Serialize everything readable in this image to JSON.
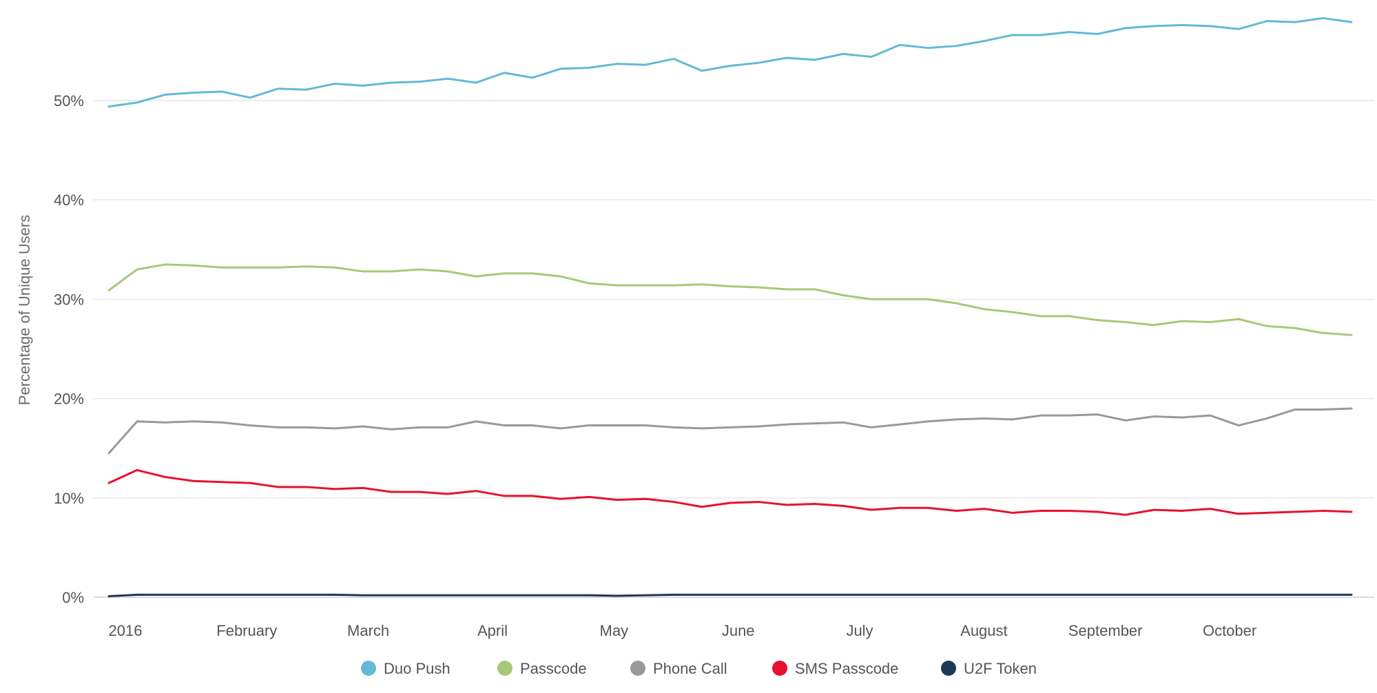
{
  "chart_data": {
    "type": "line",
    "title": "",
    "xlabel": "",
    "ylabel": "Percentage of Unique Users",
    "ylim": [
      0,
      60
    ],
    "yticks": [
      "0%",
      "10%",
      "20%",
      "30%",
      "40%",
      "50%"
    ],
    "yticks_values": [
      0,
      10,
      20,
      30,
      40,
      50
    ],
    "grid": true,
    "legend": "bottom",
    "x_range": [
      0,
      45
    ],
    "xticks": [
      {
        "label": "2016",
        "x": 1
      },
      {
        "label": "February",
        "x": 5.3
      },
      {
        "label": "March",
        "x": 9.6
      },
      {
        "label": "April",
        "x": 14
      },
      {
        "label": "May",
        "x": 18.3
      },
      {
        "label": "June",
        "x": 22.7
      },
      {
        "label": "July",
        "x": 27
      },
      {
        "label": "August",
        "x": 31.4
      },
      {
        "label": "September",
        "x": 35.7
      },
      {
        "label": "October",
        "x": 40.1
      }
    ],
    "series": [
      {
        "name": "Duo Push",
        "color": "#64b9d6",
        "values": [
          49.4,
          49.8,
          50.6,
          50.8,
          50.9,
          50.3,
          51.2,
          51.1,
          51.7,
          51.5,
          51.8,
          51.9,
          52.2,
          51.8,
          52.8,
          52.3,
          53.2,
          53.3,
          53.7,
          53.6,
          54.2,
          53.0,
          53.5,
          53.8,
          54.3,
          54.1,
          54.7,
          54.4,
          55.6,
          55.3,
          55.5,
          56.0,
          56.6,
          56.6,
          56.9,
          56.7,
          57.3,
          57.5,
          57.6,
          57.5,
          57.2,
          58.0,
          57.9,
          58.3,
          57.9
        ]
      },
      {
        "name": "Passcode",
        "color": "#a6c978",
        "values": [
          30.9,
          33.0,
          33.5,
          33.4,
          33.2,
          33.2,
          33.2,
          33.3,
          33.2,
          32.8,
          32.8,
          33.0,
          32.8,
          32.3,
          32.6,
          32.6,
          32.3,
          31.6,
          31.4,
          31.4,
          31.4,
          31.5,
          31.3,
          31.2,
          31.0,
          31.0,
          30.4,
          30.0,
          30.0,
          30.0,
          29.6,
          29.0,
          28.7,
          28.3,
          28.3,
          27.9,
          27.7,
          27.4,
          27.8,
          27.7,
          28.0,
          27.3,
          27.1,
          26.6,
          26.4
        ]
      },
      {
        "name": "Phone Call",
        "color": "#999999",
        "values": [
          14.5,
          17.7,
          17.6,
          17.7,
          17.6,
          17.3,
          17.1,
          17.1,
          17.0,
          17.2,
          16.9,
          17.1,
          17.1,
          17.7,
          17.3,
          17.3,
          17.0,
          17.3,
          17.3,
          17.3,
          17.1,
          17.0,
          17.1,
          17.2,
          17.4,
          17.5,
          17.6,
          17.1,
          17.4,
          17.7,
          17.9,
          18.0,
          17.9,
          18.3,
          18.3,
          18.4,
          17.8,
          18.2,
          18.1,
          18.3,
          17.3,
          18.0,
          18.9,
          18.9,
          19.0
        ]
      },
      {
        "name": "SMS Passcode",
        "color": "#e8112d",
        "values": [
          11.5,
          12.8,
          12.1,
          11.7,
          11.6,
          11.5,
          11.1,
          11.1,
          10.9,
          11.0,
          10.6,
          10.6,
          10.4,
          10.7,
          10.2,
          10.2,
          9.9,
          10.1,
          9.8,
          9.9,
          9.6,
          9.1,
          9.5,
          9.6,
          9.3,
          9.4,
          9.2,
          8.8,
          9.0,
          9.0,
          8.7,
          8.9,
          8.5,
          8.7,
          8.7,
          8.6,
          8.3,
          8.8,
          8.7,
          8.9,
          8.4,
          8.5,
          8.6,
          8.7,
          8.6
        ]
      },
      {
        "name": "U2F Token",
        "color": "#1c3a57",
        "values": [
          0.1,
          0.25,
          0.25,
          0.25,
          0.25,
          0.25,
          0.25,
          0.25,
          0.25,
          0.2,
          0.2,
          0.2,
          0.2,
          0.2,
          0.2,
          0.2,
          0.2,
          0.2,
          0.15,
          0.2,
          0.25,
          0.25,
          0.25,
          0.25,
          0.25,
          0.25,
          0.25,
          0.25,
          0.25,
          0.25,
          0.25,
          0.25,
          0.25,
          0.25,
          0.25,
          0.25,
          0.25,
          0.25,
          0.25,
          0.25,
          0.25,
          0.25,
          0.25,
          0.25,
          0.25
        ]
      }
    ]
  }
}
